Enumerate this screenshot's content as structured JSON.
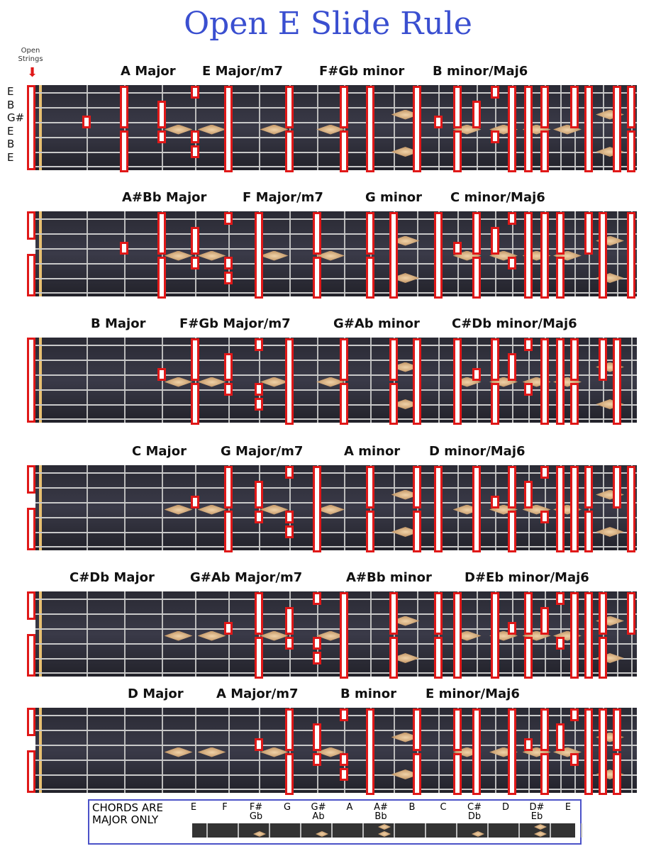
{
  "title": "Open E Slide Rule",
  "open_strings_label": "Open Strings",
  "tuning": [
    "E",
    "B",
    "G#",
    "E",
    "B",
    "E"
  ],
  "panels": [
    {
      "chords": [
        "A Major",
        "E Major/m7",
        "F#Gb minor",
        "B minor/Maj6"
      ]
    },
    {
      "chords": [
        "A#Bb Major",
        "F Major/m7",
        "G minor",
        "C minor/Maj6"
      ]
    },
    {
      "chords": [
        "B Major",
        "F#Gb Major/m7",
        "G#Ab minor",
        "C#Db minor/Maj6"
      ]
    },
    {
      "chords": [
        "C Major",
        "G Major/m7",
        "A minor",
        "D minor/Maj6"
      ]
    },
    {
      "chords": [
        "C#Db Major",
        "G#Ab Major/m7",
        "A#Bb minor",
        "D#Eb minor/Maj6"
      ]
    },
    {
      "chords": [
        "D Major",
        "A Major/m7",
        "B minor",
        "E minor/Maj6"
      ]
    }
  ],
  "legend": {
    "label_line1": "CHORDS ARE",
    "label_line2": "MAJOR ONLY",
    "notes": [
      [
        "E",
        ""
      ],
      [
        "F",
        ""
      ],
      [
        "F#",
        "Gb"
      ],
      [
        "G",
        ""
      ],
      [
        "G#",
        "Ab"
      ],
      [
        "A",
        ""
      ],
      [
        "A#",
        "Bb"
      ],
      [
        "B",
        ""
      ],
      [
        "C",
        ""
      ],
      [
        "C#",
        "Db"
      ],
      [
        "D",
        ""
      ],
      [
        "D#",
        "Eb"
      ],
      [
        "E",
        ""
      ]
    ]
  },
  "colors": {
    "title": "#3a4fd0",
    "box": "#e01818",
    "legend_border": "#4b52c8"
  }
}
